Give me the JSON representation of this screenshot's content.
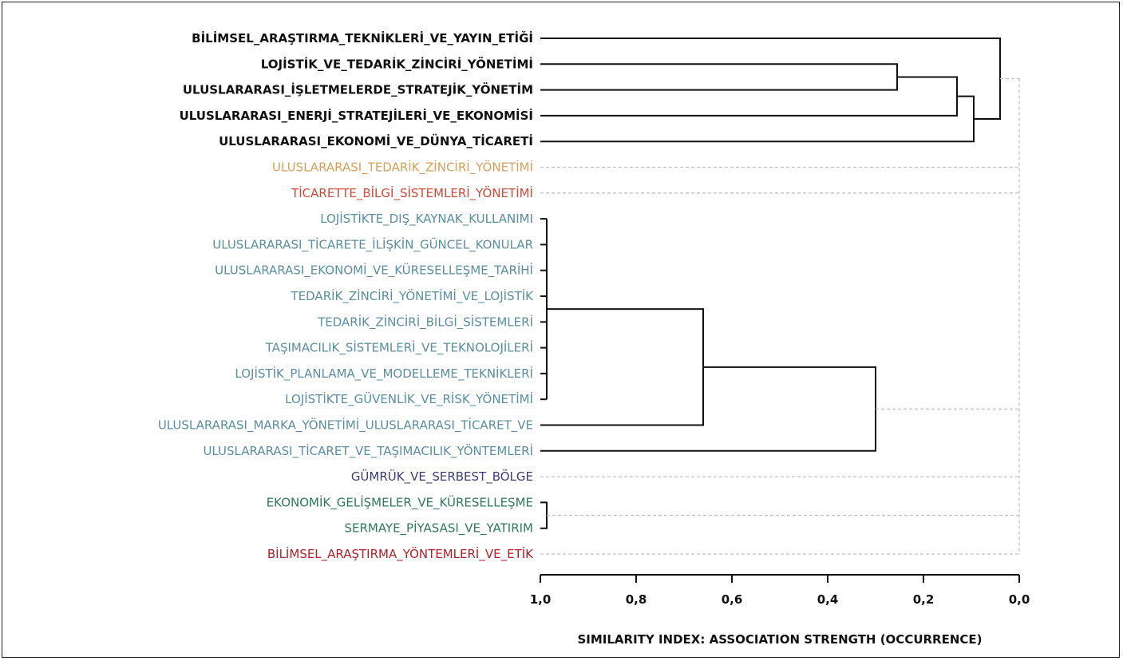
{
  "chart_data": {
    "type": "dendrogram",
    "xlabel": "SIMILARITY INDEX: ASSOCIATION STRENGTH (OCCURRENCE)",
    "xlim": [
      1.0,
      0.0
    ],
    "xticks": [
      "1,0",
      "0,8",
      "0,6",
      "0,4",
      "0,2",
      "0,0"
    ],
    "xtick_values": [
      1.0,
      0.8,
      0.6,
      0.4,
      0.2,
      0.0
    ],
    "leaves": [
      {
        "label": "BİLİMSEL_ARAŞTIRMA_TEKNİKLERİ_VE_YAYIN_ETİĞİ",
        "color": "#111111",
        "bold": true
      },
      {
        "label": "LOJİSTİK_VE_TEDARİK_ZİNCİRİ_YÖNETİMİ",
        "color": "#111111",
        "bold": true
      },
      {
        "label": "ULUSLARARASI_İŞLETMELERDE_STRATEJİK_YÖNETİM",
        "color": "#111111",
        "bold": true
      },
      {
        "label": "ULUSLARARASI_ENERJİ_STRATEJİLERİ_VE_EKONOMİSİ",
        "color": "#111111",
        "bold": true
      },
      {
        "label": "ULUSLARARASI_EKONOMİ_VE_DÜNYA_TİCARETİ",
        "color": "#111111",
        "bold": true
      },
      {
        "label": "ULUSLARARASI_TEDARİK_ZİNCİRİ_YÖNETİMİ",
        "color": "#d9a05b",
        "bold": false
      },
      {
        "label": "TİCARETTE_BİLGİ_SİSTEMLERİ_YÖNETİMİ",
        "color": "#cf4b3a",
        "bold": false
      },
      {
        "label": "LOJİSTİKTE_DIŞ_KAYNAK_KULLANIMI",
        "color": "#5a8fa1",
        "bold": false
      },
      {
        "label": "ULUSLARARASI_TİCARETE_İLİŞKİN_GÜNCEL_KONULAR",
        "color": "#5a8fa1",
        "bold": false
      },
      {
        "label": "ULUSLARARASI_EKONOMİ_VE_KÜRESELLEŞME_TARİHİ",
        "color": "#5a8fa1",
        "bold": false
      },
      {
        "label": "TEDARİK_ZİNCİRİ_YÖNETİMİ_VE_LOJİSTİK",
        "color": "#5a8fa1",
        "bold": false
      },
      {
        "label": "TEDARİK_ZİNCİRİ_BİLGİ_SİSTEMLERİ",
        "color": "#5a8fa1",
        "bold": false
      },
      {
        "label": "TAŞIMACILIK_SİSTEMLERİ_VE_TEKNOLOJİLERİ",
        "color": "#5a8fa1",
        "bold": false
      },
      {
        "label": "LOJİSTİK_PLANLAMA_VE_MODELLEME_TEKNİKLERİ",
        "color": "#5a8fa1",
        "bold": false
      },
      {
        "label": "LOJİSTİKTE_GÜVENLİK_VE_RİSK_YÖNETİMİ",
        "color": "#5a8fa1",
        "bold": false
      },
      {
        "label": "ULUSLARARASI_MARKA_YÖNETİMİ_ULUSLARARASI_TİCARET_VE",
        "color": "#5a8fa1",
        "bold": false
      },
      {
        "label": "ULUSLARARASI_TİCARET_VE_TAŞIMACILIK_YÖNTEMLERİ",
        "color": "#5a8fa1",
        "bold": false
      },
      {
        "label": "GÜMRÜK_VE_SERBEST_BÖLGE",
        "color": "#3c3a7a",
        "bold": false
      },
      {
        "label": "EKONOMİK_GELİŞMELER_VE_KÜRESELLEŞME",
        "color": "#2f7a5a",
        "bold": false
      },
      {
        "label": "SERMAYE_PİYASASI_VE_YATIRIM",
        "color": "#2f7a5a",
        "bold": false
      },
      {
        "label": "BİLİMSEL_ARAŞTIRMA_YÖNTEMLERİ_VE_ETİK",
        "color": "#b3202a",
        "bold": false
      }
    ],
    "merges": [
      {
        "a": "leaf:1",
        "b": "leaf:2",
        "height": 0.255,
        "id": "c1",
        "style": "solid"
      },
      {
        "a": "c1",
        "b": "leaf:3",
        "height": 0.13,
        "id": "c2",
        "style": "solid"
      },
      {
        "a": "c2",
        "b": "leaf:4",
        "height": 0.095,
        "id": "c3",
        "style": "solid"
      },
      {
        "a": "leaf:0",
        "b": "c3",
        "height": 0.04,
        "id": "c4",
        "style": "solid"
      },
      {
        "a": "leaf:7",
        "b": "leaf:14",
        "height": 1.0,
        "id": "c5",
        "style": "solid",
        "range": true
      },
      {
        "a": "c5",
        "b": "leaf:15",
        "height": 0.66,
        "id": "c6",
        "style": "solid"
      },
      {
        "a": "c6",
        "b": "leaf:16",
        "height": 0.3,
        "id": "c7",
        "style": "solid"
      },
      {
        "a": "leaf:18",
        "b": "leaf:19",
        "height": 1.0,
        "id": "c8",
        "style": "solid"
      }
    ],
    "dashed_links": [
      {
        "from": "c4",
        "to_height": 0.0
      },
      {
        "from": "leaf:5",
        "to_height": 0.0
      },
      {
        "from": "leaf:6",
        "to_height": 0.0
      },
      {
        "from": "c7",
        "to_height": 0.0
      },
      {
        "from": "leaf:17",
        "to_height": 0.0
      },
      {
        "from": "c8",
        "to_height": 0.0
      },
      {
        "from": "leaf:20",
        "to_height": 0.0
      }
    ]
  }
}
